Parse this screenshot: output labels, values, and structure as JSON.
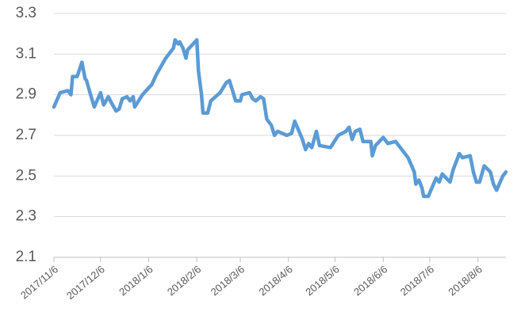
{
  "chart_data": {
    "type": "line",
    "x": [
      "2017/11/6",
      "2017/11/10",
      "2017/11/15",
      "2017/11/17",
      "2017/11/18",
      "2017/11/21",
      "2017/11/24",
      "2017/11/26",
      "2017/11/27",
      "2017/11/30",
      "2017/12/2",
      "2017/12/6",
      "2017/12/8",
      "2017/12/11",
      "2017/12/13",
      "2017/12/16",
      "2017/12/18",
      "2017/12/20",
      "2017/12/23",
      "2017/12/25",
      "2017/12/27",
      "2017/12/28",
      "2018/1/2",
      "2018/1/8",
      "2018/1/11",
      "2018/1/17",
      "2018/1/22",
      "2018/1/23",
      "2018/1/25",
      "2018/1/26",
      "2018/1/28",
      "2018/1/30",
      "2018/1/31",
      "2018/2/6",
      "2018/2/7",
      "2018/2/9",
      "2018/2/10",
      "2018/2/13",
      "2018/2/15",
      "2018/2/21",
      "2018/2/25",
      "2018/2/27",
      "2018/3/3",
      "2018/3/6",
      "2018/3/7",
      "2018/3/12",
      "2018/3/14",
      "2018/3/16",
      "2018/3/19",
      "2018/3/21",
      "2018/3/23",
      "2018/3/26",
      "2018/3/28",
      "2018/3/30",
      "2018/4/5",
      "2018/4/8",
      "2018/4/10",
      "2018/4/15",
      "2018/4/17",
      "2018/4/19",
      "2018/4/21",
      "2018/4/24",
      "2018/4/26",
      "2018/5/3",
      "2018/5/8",
      "2018/5/13",
      "2018/5/15",
      "2018/5/17",
      "2018/5/19",
      "2018/5/22",
      "2018/5/24",
      "2018/5/29",
      "2018/5/30",
      "2018/6/1",
      "2018/6/6",
      "2018/6/9",
      "2018/6/14",
      "2018/6/19",
      "2018/6/22",
      "2018/6/26",
      "2018/6/27",
      "2018/6/29",
      "2018/7/1",
      "2018/7/2",
      "2018/7/5",
      "2018/7/10",
      "2018/7/12",
      "2018/7/14",
      "2018/7/19",
      "2018/7/21",
      "2018/7/25",
      "2018/7/27",
      "2018/8/1",
      "2018/8/3",
      "2018/8/5",
      "2018/8/7",
      "2018/8/10",
      "2018/8/14",
      "2018/8/16",
      "2018/8/18",
      "2018/8/22",
      "2018/8/24"
    ],
    "series": [
      {
        "color": "#5b9bd5",
        "values": [
          2.84,
          2.91,
          2.92,
          2.9,
          2.99,
          2.99,
          3.06,
          2.98,
          2.97,
          2.89,
          2.84,
          2.91,
          2.85,
          2.89,
          2.86,
          2.82,
          2.83,
          2.88,
          2.89,
          2.87,
          2.89,
          2.84,
          2.9,
          2.95,
          3.0,
          3.08,
          3.13,
          3.17,
          3.15,
          3.16,
          3.13,
          3.08,
          3.12,
          3.17,
          3.02,
          2.9,
          2.81,
          2.81,
          2.87,
          2.91,
          2.96,
          2.97,
          2.87,
          2.87,
          2.9,
          2.91,
          2.88,
          2.87,
          2.89,
          2.88,
          2.78,
          2.75,
          2.7,
          2.72,
          2.7,
          2.71,
          2.77,
          2.68,
          2.63,
          2.66,
          2.64,
          2.72,
          2.65,
          2.64,
          2.7,
          2.72,
          2.74,
          2.68,
          2.72,
          2.73,
          2.67,
          2.67,
          2.6,
          2.65,
          2.69,
          2.66,
          2.67,
          2.62,
          2.59,
          2.52,
          2.46,
          2.48,
          2.44,
          2.4,
          2.4,
          2.49,
          2.47,
          2.51,
          2.47,
          2.53,
          2.61,
          2.59,
          2.6,
          2.52,
          2.47,
          2.47,
          2.55,
          2.52,
          2.46,
          2.43,
          2.5,
          2.52
        ]
      }
    ],
    "xlim": [
      "2017/11/6",
      "2018/8/24"
    ],
    "xticks": [
      "2017/11/6",
      "2017/12/6",
      "2018/1/6",
      "2018/2/6",
      "2018/3/6",
      "2018/4/6",
      "2018/5/6",
      "2018/6/6",
      "2018/7/6",
      "2018/8/6"
    ],
    "ylim": [
      2.1,
      3.3
    ],
    "yticks": [
      2.1,
      2.3,
      2.5,
      2.7,
      2.9,
      3.1,
      3.3
    ],
    "grid": true
  }
}
